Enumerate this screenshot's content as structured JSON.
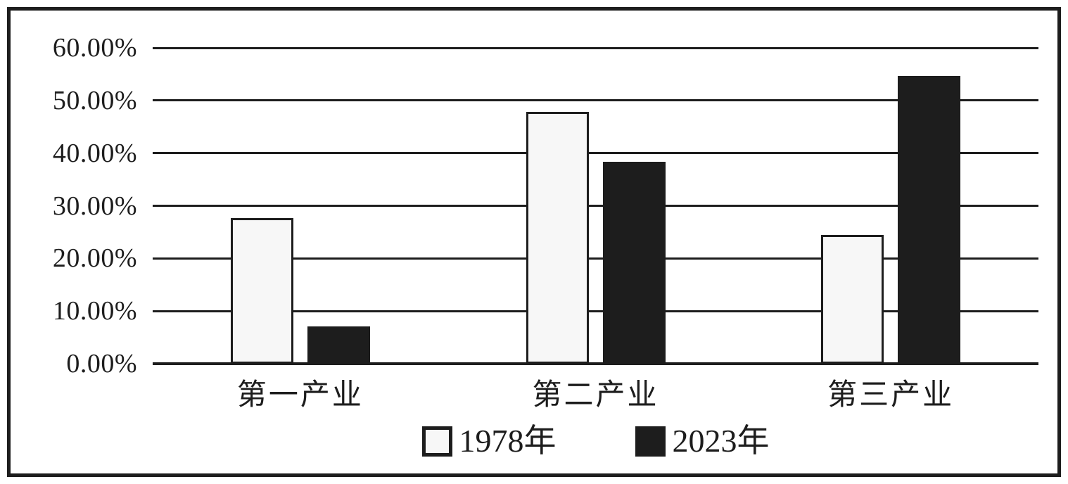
{
  "chart_data": {
    "type": "bar",
    "categories": [
      "第一产业",
      "第二产业",
      "第三产业"
    ],
    "series": [
      {
        "name": "1978年",
        "values": [
          27.7,
          47.9,
          24.5
        ],
        "fill": "#f7f7f7",
        "border": "#1d1d1d",
        "outline": true
      },
      {
        "name": "2023年",
        "values": [
          7.1,
          38.3,
          54.6
        ],
        "fill": "#1d1d1d",
        "border": "#1d1d1d",
        "outline": false
      }
    ],
    "title": "",
    "xlabel": "",
    "ylabel": "",
    "ylim": [
      0,
      60
    ],
    "ytick_step": 10,
    "ytick_labels": [
      "0.00%",
      "10.00%",
      "20.00%",
      "30.00%",
      "40.00%",
      "50.00%",
      "60.00%"
    ],
    "grid": true,
    "legend_position": "bottom"
  },
  "colors": {
    "ink": "#1d1d1d",
    "paper": "#ffffff",
    "bar_1978_fill": "#f7f7f7",
    "bar_2023_fill": "#1d1d1d"
  }
}
